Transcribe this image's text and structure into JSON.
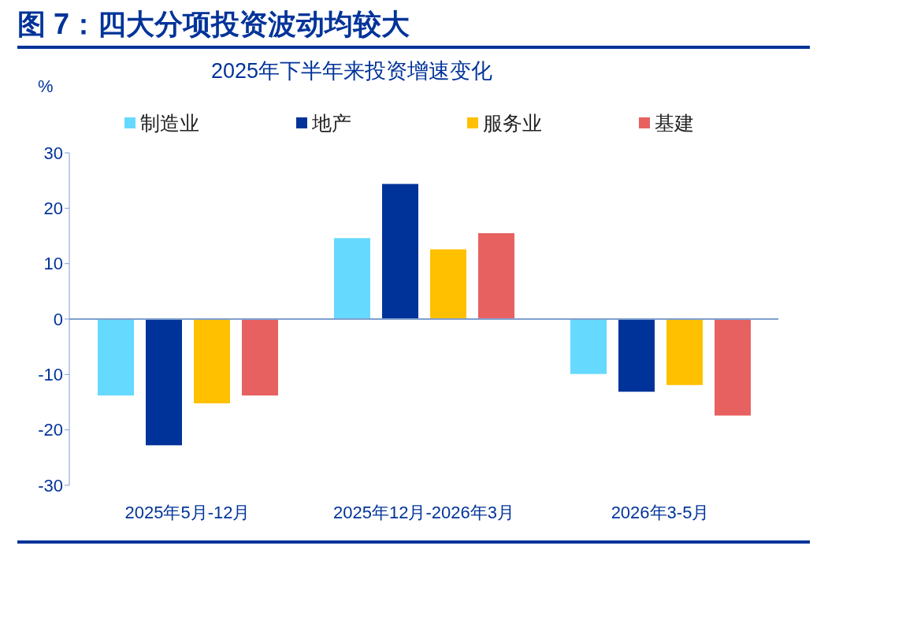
{
  "chart_data": {
    "type": "bar",
    "title": "图 7：四大分项投资波动均较大",
    "subtitle": "2025年下半年来投资增速变化",
    "ylabel": "%",
    "categories": [
      "2025年5月-12月",
      "2025年12月-2026年3月",
      "2026年3-5月"
    ],
    "series": [
      {
        "name": "制造业",
        "color": "#66d9ff",
        "values": [
          -13.8,
          14.6,
          -9.9
        ]
      },
      {
        "name": "地产",
        "color": "#003399",
        "values": [
          -22.8,
          24.4,
          -13.1
        ]
      },
      {
        "name": "服务业",
        "color": "#ffc000",
        "values": [
          -15.2,
          12.6,
          -11.9
        ]
      },
      {
        "name": "基建",
        "color": "#e86161",
        "values": [
          -13.8,
          15.5,
          -17.4
        ]
      }
    ],
    "ylim": [
      -30,
      30
    ],
    "yticks": [
      -30,
      -20,
      -10,
      0,
      10,
      20,
      30
    ],
    "ref_lines": [
      {
        "axis": "y",
        "value": 0,
        "color": "#7fa0cf"
      }
    ],
    "grid": false,
    "legend": "top"
  }
}
